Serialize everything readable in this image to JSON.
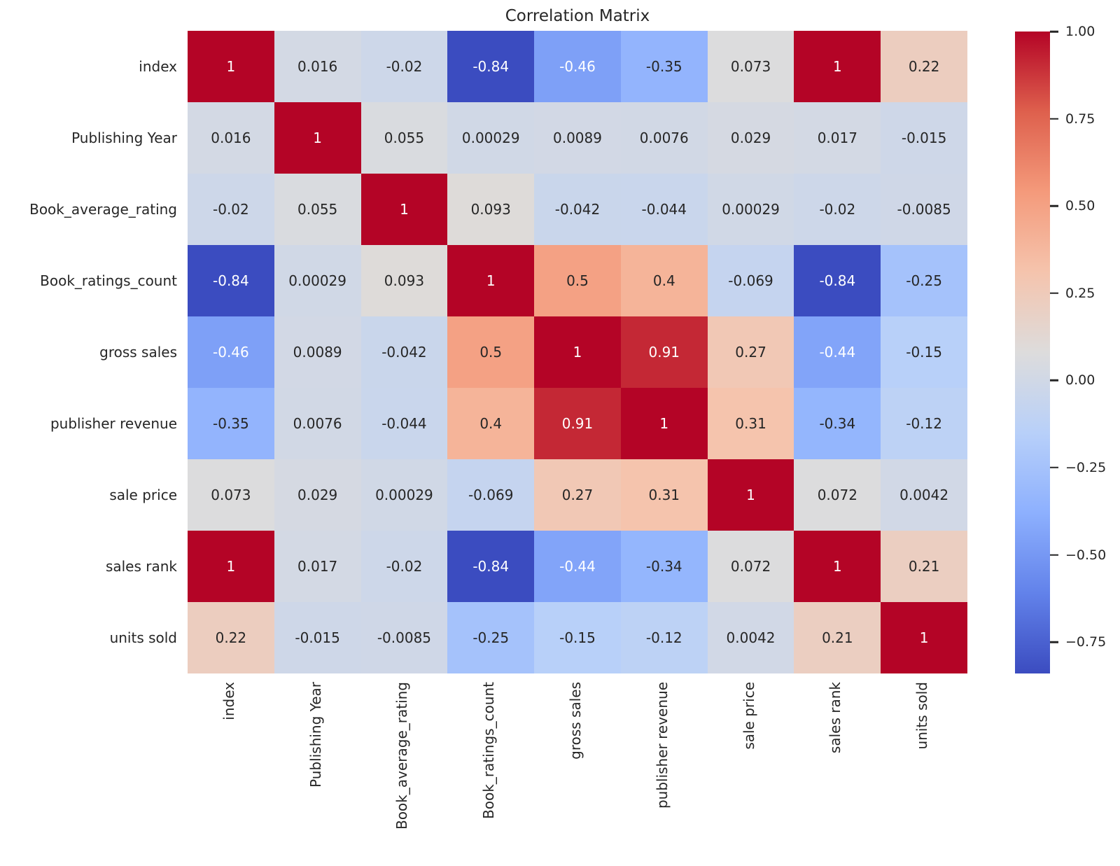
{
  "title": "Correlation Matrix",
  "chart_data": {
    "type": "heatmap",
    "title": "Correlation Matrix",
    "x_labels": [
      "index",
      "Publishing Year",
      "Book_average_rating",
      "Book_ratings_count",
      "gross sales",
      "publisher revenue",
      "sale price",
      "sales rank",
      "units sold"
    ],
    "y_labels": [
      "index",
      "Publishing Year",
      "Book_average_rating",
      "Book_ratings_count",
      "gross sales",
      "publisher revenue",
      "sale price",
      "sales rank",
      "units sold"
    ],
    "matrix": [
      [
        1,
        0.016,
        -0.02,
        -0.84,
        -0.46,
        -0.35,
        0.073,
        1,
        0.22
      ],
      [
        0.016,
        1,
        0.055,
        0.00029,
        0.0089,
        0.0076,
        0.029,
        0.017,
        -0.015
      ],
      [
        -0.02,
        0.055,
        1,
        0.093,
        -0.042,
        -0.044,
        0.00029,
        -0.02,
        -0.0085
      ],
      [
        -0.84,
        0.00029,
        0.093,
        1,
        0.5,
        0.4,
        -0.069,
        -0.84,
        -0.25
      ],
      [
        -0.46,
        0.0089,
        -0.042,
        0.5,
        1,
        0.91,
        0.27,
        -0.44,
        -0.15
      ],
      [
        -0.35,
        0.0076,
        -0.044,
        0.4,
        0.91,
        1,
        0.31,
        -0.34,
        -0.12
      ],
      [
        0.073,
        0.029,
        0.00029,
        -0.069,
        0.27,
        0.31,
        1,
        0.072,
        0.0042
      ],
      [
        1,
        0.017,
        -0.02,
        -0.84,
        -0.44,
        -0.34,
        0.072,
        1,
        0.21
      ],
      [
        0.22,
        -0.015,
        -0.0085,
        -0.25,
        -0.15,
        -0.12,
        0.0042,
        0.21,
        1
      ]
    ],
    "annot": [
      [
        "1",
        "0.016",
        "-0.02",
        "-0.84",
        "-0.46",
        "-0.35",
        "0.073",
        "1",
        "0.22"
      ],
      [
        "0.016",
        "1",
        "0.055",
        "0.00029",
        "0.0089",
        "0.0076",
        "0.029",
        "0.017",
        "-0.015"
      ],
      [
        "-0.02",
        "0.055",
        "1",
        "0.093",
        "-0.042",
        "-0.044",
        "0.00029",
        "-0.02",
        "-0.0085"
      ],
      [
        "-0.84",
        "0.00029",
        "0.093",
        "1",
        "0.5",
        "0.4",
        "-0.069",
        "-0.84",
        "-0.25"
      ],
      [
        "-0.46",
        "0.0089",
        "-0.042",
        "0.5",
        "1",
        "0.91",
        "0.27",
        "-0.44",
        "-0.15"
      ],
      [
        "-0.35",
        "0.0076",
        "-0.044",
        "0.4",
        "0.91",
        "1",
        "0.31",
        "-0.34",
        "-0.12"
      ],
      [
        "0.073",
        "0.029",
        "0.00029",
        "-0.069",
        "0.27",
        "0.31",
        "1",
        "0.072",
        "0.0042"
      ],
      [
        "1",
        "0.017",
        "-0.02",
        "-0.84",
        "-0.44",
        "-0.34",
        "0.072",
        "1",
        "0.21"
      ],
      [
        "0.22",
        "-0.015",
        "-0.0085",
        "-0.25",
        "-0.15",
        "-0.12",
        "0.0042",
        "0.21",
        "1"
      ]
    ],
    "vmin": -0.84,
    "vmax": 1.0,
    "colormap_name": "coolwarm",
    "colormap_stops": [
      "#3b4cc0",
      "#6282ea",
      "#8db0fe",
      "#b8d0f9",
      "#dddcdc",
      "#f5c4ad",
      "#f49a7b",
      "#de604d",
      "#b40426"
    ],
    "colorbar_ticks": [
      {
        "label": "1.00",
        "value": 1.0
      },
      {
        "label": "0.75",
        "value": 0.75
      },
      {
        "label": "0.50",
        "value": 0.5
      },
      {
        "label": "0.25",
        "value": 0.25
      },
      {
        "label": "0.00",
        "value": 0.0
      },
      {
        "label": "−0.25",
        "value": -0.25
      },
      {
        "label": "−0.50",
        "value": -0.5
      },
      {
        "label": "−0.75",
        "value": -0.75
      }
    ],
    "legend_position": "right",
    "grid": false,
    "annotation_text_dark": "#262626",
    "annotation_text_light": "#ffffff",
    "background": "#ffffff"
  }
}
